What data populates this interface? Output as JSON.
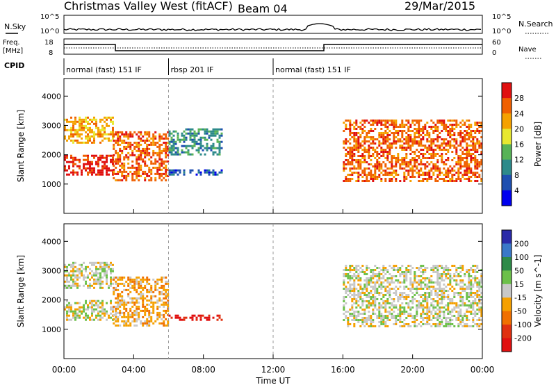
{
  "header": {
    "title": "Christmas Valley West (fitACF)",
    "beam": "Beam 04",
    "date": "29/Mar/2015"
  },
  "top_panels": {
    "nsky_label": "N.Sky",
    "nsky_ticks": [
      "10^5",
      "10^0"
    ],
    "nsearch_label": "N.Search",
    "nsearch_ticks": [
      "10^5",
      "10^0"
    ],
    "freq_label_1": "Freq.",
    "freq_label_2": "[MHz]",
    "freq_ticks": [
      "18",
      "8"
    ],
    "nave_label": "Nave",
    "nave_ticks": [
      "60",
      "0"
    ],
    "cpid_label": "CPID",
    "cpid_segments": [
      {
        "label": "normal (fast) 151 IF",
        "start": 0,
        "end": 6
      },
      {
        "label": "rbsp 201 IF",
        "start": 6,
        "end": 12
      },
      {
        "label": "normal (fast) 151 IF",
        "start": 12,
        "end": 24
      }
    ]
  },
  "chart_data": [
    {
      "type": "heatmap",
      "title": "Power",
      "ylabel": "Slant Range [km]",
      "yticks": [
        "1000",
        "2000",
        "3000",
        "4000"
      ],
      "ylim": [
        0,
        4600
      ],
      "colorbar_label": "Power [dB]",
      "colorbar_ticks": [
        "4",
        "8",
        "12",
        "16",
        "20",
        "24",
        "28"
      ],
      "colors": [
        "#0000ee",
        "#1e4fb0",
        "#2d8a8a",
        "#58b357",
        "#e8e830",
        "#f5a100",
        "#f06000",
        "#e01010"
      ],
      "echo_bands": [
        {
          "x": [
            0.0,
            2.8
          ],
          "y": [
            1300,
            2000
          ],
          "level": 7
        },
        {
          "x": [
            0.0,
            2.8
          ],
          "y": [
            2400,
            3300
          ],
          "level": 5
        },
        {
          "x": [
            2.8,
            6.0
          ],
          "y": [
            1100,
            2800
          ],
          "level": 6
        },
        {
          "x": [
            6.0,
            9.0
          ],
          "y": [
            1300,
            1500
          ],
          "level": 1
        },
        {
          "x": [
            6.0,
            9.0
          ],
          "y": [
            2000,
            2900
          ],
          "level": 2
        },
        {
          "x": [
            16.0,
            24.0
          ],
          "y": [
            1100,
            3200
          ],
          "level": 6
        }
      ]
    },
    {
      "type": "heatmap",
      "title": "Velocity",
      "ylabel": "Slant Range [km]",
      "yticks": [
        "1000",
        "2000",
        "3000",
        "4000"
      ],
      "ylim": [
        0,
        4600
      ],
      "colorbar_label": "Velocity [m s^-1]",
      "colorbar_ticks": [
        "200",
        "100",
        "50",
        "15",
        "-15",
        "-50",
        "-100",
        "-200"
      ],
      "colors": [
        "#2a2aa8",
        "#3a78c8",
        "#2e8a48",
        "#6cc04a",
        "#c8c8c8",
        "#f5a000",
        "#f07000",
        "#e03010",
        "#e01010"
      ],
      "echo_bands": [
        {
          "x": [
            0.0,
            2.8
          ],
          "y": [
            1300,
            2000
          ],
          "level": 4
        },
        {
          "x": [
            0.0,
            2.8
          ],
          "y": [
            2400,
            3300
          ],
          "level": 4
        },
        {
          "x": [
            2.8,
            6.0
          ],
          "y": [
            1100,
            2800
          ],
          "level": 5
        },
        {
          "x": [
            6.0,
            9.0
          ],
          "y": [
            1300,
            1500
          ],
          "level": 8
        },
        {
          "x": [
            16.0,
            24.0
          ],
          "y": [
            1100,
            3200
          ],
          "level": 4
        }
      ]
    }
  ],
  "xaxis": {
    "label": "Time UT",
    "ticks": [
      "00:00",
      "04:00",
      "08:00",
      "12:00",
      "16:00",
      "20:00",
      "00:00"
    ],
    "xlim": [
      0,
      24
    ]
  }
}
